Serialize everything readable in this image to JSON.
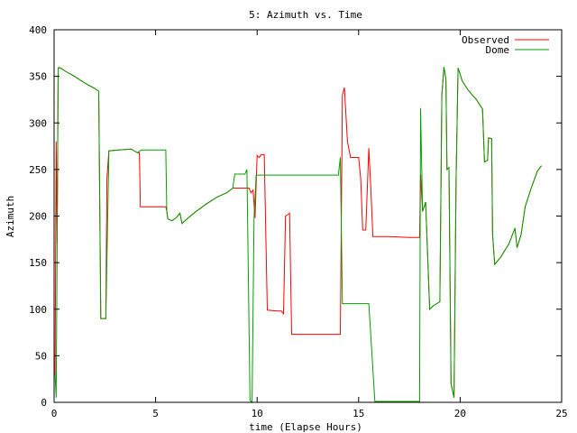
{
  "chart_data": {
    "type": "line",
    "title": "5: Azimuth vs. Time",
    "xlabel": "time (Elapse Hours)",
    "ylabel": "Azimuth",
    "xlim": [
      0,
      25
    ],
    "ylim": [
      0,
      400
    ],
    "xticks": [
      0,
      5,
      10,
      15,
      20,
      25
    ],
    "yticks": [
      0,
      50,
      100,
      150,
      200,
      250,
      300,
      350,
      400
    ],
    "grid": false,
    "legend_position": "top-right",
    "series": [
      {
        "name": "Observed",
        "color": "#ff0000",
        "points": [
          [
            0.0,
            30
          ],
          [
            0.05,
            30
          ],
          [
            0.1,
            280
          ],
          [
            0.15,
            170
          ],
          [
            0.2,
            359
          ],
          [
            0.3,
            359
          ],
          [
            0.6,
            355
          ],
          [
            1.0,
            350
          ],
          [
            1.5,
            343
          ],
          [
            2.0,
            337
          ],
          [
            2.2,
            334
          ],
          [
            2.3,
            90
          ],
          [
            2.55,
            90
          ],
          [
            2.6,
            240
          ],
          [
            2.7,
            270
          ],
          [
            3.2,
            271
          ],
          [
            3.8,
            272
          ],
          [
            4.1,
            268
          ],
          [
            4.2,
            268
          ],
          [
            4.25,
            210
          ],
          [
            5.0,
            210
          ],
          [
            5.5,
            210
          ],
          [
            5.55,
            205
          ],
          [
            5.6,
            197
          ],
          [
            5.8,
            195
          ],
          [
            6.0,
            198
          ],
          [
            6.2,
            203
          ],
          [
            6.3,
            192
          ],
          [
            6.6,
            198
          ],
          [
            7.0,
            205
          ],
          [
            7.5,
            213
          ],
          [
            8.0,
            220
          ],
          [
            8.5,
            225
          ],
          [
            8.8,
            230
          ],
          [
            9.2,
            230
          ],
          [
            9.6,
            230
          ],
          [
            9.7,
            225
          ],
          [
            9.8,
            228
          ],
          [
            9.9,
            198
          ],
          [
            10.0,
            265
          ],
          [
            10.1,
            263
          ],
          [
            10.2,
            266
          ],
          [
            10.35,
            266
          ],
          [
            10.5,
            99
          ],
          [
            11.0,
            98
          ],
          [
            11.2,
            98
          ],
          [
            11.3,
            95
          ],
          [
            11.4,
            200
          ],
          [
            11.6,
            203
          ],
          [
            11.7,
            73
          ],
          [
            12.5,
            73
          ],
          [
            13.5,
            73
          ],
          [
            14.1,
            73
          ],
          [
            14.2,
            330
          ],
          [
            14.3,
            338
          ],
          [
            14.45,
            280
          ],
          [
            14.6,
            263
          ],
          [
            15.0,
            263
          ],
          [
            15.1,
            240
          ],
          [
            15.2,
            185
          ],
          [
            15.35,
            185
          ],
          [
            15.5,
            273
          ],
          [
            15.6,
            230
          ],
          [
            15.7,
            178
          ],
          [
            16.5,
            178
          ],
          [
            17.5,
            177
          ],
          [
            18.0,
            177
          ],
          [
            18.05,
            245
          ],
          [
            18.15,
            205
          ],
          [
            18.3,
            215
          ],
          [
            18.5,
            100
          ],
          [
            18.7,
            104
          ],
          [
            19.0,
            108
          ],
          [
            19.1,
            330
          ],
          [
            19.2,
            360
          ],
          [
            19.3,
            347
          ],
          [
            19.35,
            250
          ],
          [
            19.45,
            252
          ],
          [
            19.55,
            20
          ],
          [
            19.7,
            5
          ],
          [
            19.8,
            240
          ],
          [
            19.9,
            359
          ],
          [
            20.1,
            345
          ],
          [
            20.4,
            335
          ],
          [
            20.8,
            325
          ],
          [
            21.1,
            315
          ],
          [
            21.2,
            258
          ],
          [
            21.35,
            260
          ],
          [
            21.4,
            284
          ],
          [
            21.55,
            283
          ],
          [
            21.6,
            180
          ],
          [
            21.7,
            148
          ],
          [
            22.0,
            156
          ],
          [
            22.4,
            170
          ],
          [
            22.7,
            187
          ],
          [
            22.8,
            166
          ],
          [
            23.0,
            180
          ],
          [
            23.2,
            210
          ],
          [
            23.5,
            230
          ],
          [
            23.8,
            248
          ],
          [
            24.0,
            254
          ]
        ]
      },
      {
        "name": "Dome",
        "color": "#00a000",
        "points": [
          [
            0.0,
            30
          ],
          [
            0.05,
            30
          ],
          [
            0.1,
            5
          ],
          [
            0.15,
            170
          ],
          [
            0.2,
            359
          ],
          [
            0.3,
            359
          ],
          [
            0.6,
            355
          ],
          [
            1.0,
            350
          ],
          [
            1.5,
            343
          ],
          [
            2.0,
            337
          ],
          [
            2.2,
            334
          ],
          [
            2.3,
            90
          ],
          [
            2.55,
            90
          ],
          [
            2.7,
            270
          ],
          [
            3.2,
            271
          ],
          [
            3.8,
            272
          ],
          [
            4.1,
            268
          ],
          [
            4.3,
            271
          ],
          [
            5.0,
            271
          ],
          [
            5.5,
            271
          ],
          [
            5.55,
            205
          ],
          [
            5.6,
            197
          ],
          [
            5.8,
            195
          ],
          [
            6.0,
            198
          ],
          [
            6.2,
            203
          ],
          [
            6.3,
            192
          ],
          [
            6.6,
            198
          ],
          [
            7.0,
            205
          ],
          [
            7.5,
            213
          ],
          [
            8.0,
            220
          ],
          [
            8.5,
            225
          ],
          [
            8.8,
            230
          ],
          [
            8.9,
            245
          ],
          [
            9.4,
            245
          ],
          [
            9.5,
            250
          ],
          [
            9.65,
            2
          ],
          [
            9.75,
            0
          ],
          [
            9.85,
            198
          ],
          [
            9.95,
            244
          ],
          [
            10.5,
            244
          ],
          [
            11.5,
            244
          ],
          [
            12.5,
            244
          ],
          [
            13.5,
            244
          ],
          [
            14.0,
            244
          ],
          [
            14.1,
            263
          ],
          [
            14.2,
            106
          ],
          [
            15.0,
            106
          ],
          [
            15.5,
            106
          ],
          [
            15.8,
            1
          ],
          [
            16.5,
            1
          ],
          [
            17.5,
            1
          ],
          [
            18.0,
            1
          ],
          [
            18.05,
            316
          ],
          [
            18.15,
            205
          ],
          [
            18.3,
            215
          ],
          [
            18.5,
            100
          ],
          [
            18.7,
            104
          ],
          [
            19.0,
            108
          ],
          [
            19.1,
            330
          ],
          [
            19.2,
            360
          ],
          [
            19.3,
            347
          ],
          [
            19.35,
            250
          ],
          [
            19.45,
            252
          ],
          [
            19.55,
            20
          ],
          [
            19.7,
            5
          ],
          [
            19.8,
            240
          ],
          [
            19.9,
            359
          ],
          [
            20.1,
            345
          ],
          [
            20.4,
            335
          ],
          [
            20.8,
            325
          ],
          [
            21.1,
            315
          ],
          [
            21.2,
            258
          ],
          [
            21.35,
            260
          ],
          [
            21.4,
            284
          ],
          [
            21.55,
            283
          ],
          [
            21.6,
            180
          ],
          [
            21.7,
            148
          ],
          [
            22.0,
            156
          ],
          [
            22.4,
            170
          ],
          [
            22.7,
            187
          ],
          [
            22.8,
            166
          ],
          [
            23.0,
            180
          ],
          [
            23.2,
            210
          ],
          [
            23.5,
            230
          ],
          [
            23.8,
            248
          ],
          [
            24.0,
            254
          ]
        ]
      }
    ]
  }
}
